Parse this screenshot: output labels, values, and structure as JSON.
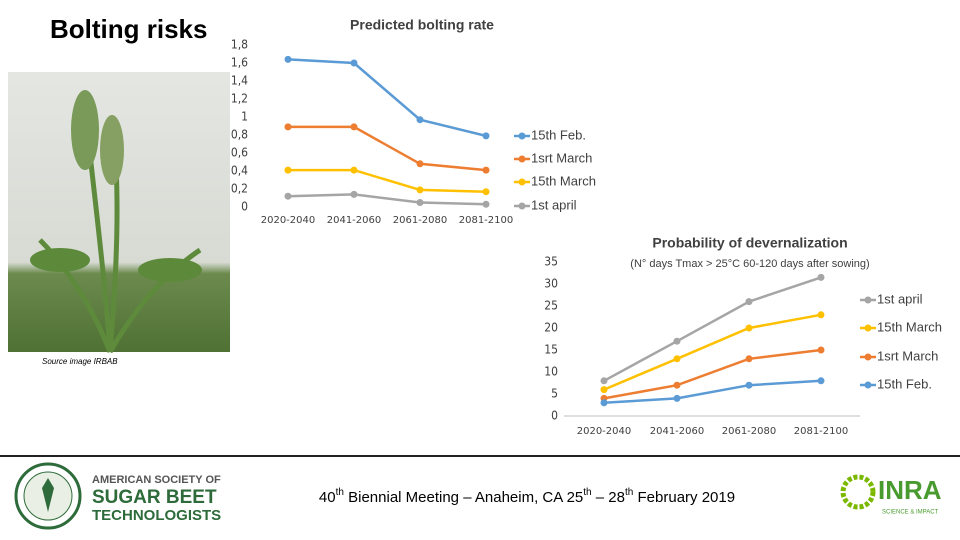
{
  "header": {
    "title": "Bolting risks",
    "image_source": "Source image IRBAB"
  },
  "chart_data": [
    {
      "type": "line",
      "title": "Predicted bolting rate",
      "categories": [
        "2020-2040",
        "2041-2060",
        "2061-2080",
        "2081-2100"
      ],
      "series": [
        {
          "name": "15th Feb.",
          "color": "#5b9bd5",
          "values": [
            1.64,
            1.6,
            0.97,
            0.79
          ]
        },
        {
          "name": "1srt March",
          "color": "#ed7d31",
          "values": [
            0.89,
            0.89,
            0.48,
            0.41
          ]
        },
        {
          "name": "15th March",
          "color": "#ffc000",
          "values": [
            0.41,
            0.41,
            0.19,
            0.17
          ]
        },
        {
          "name": "1st april",
          "color": "#a5a5a5",
          "values": [
            0.12,
            0.14,
            0.05,
            0.03
          ]
        }
      ],
      "ylim": [
        0,
        1.8
      ],
      "yticks": [
        0,
        {
          "value": 0.2,
          "label": "0,2"
        },
        {
          "value": 0.4,
          "label": "0,4"
        },
        {
          "value": 0.6,
          "label": "0,6"
        },
        {
          "value": 0.8,
          "label": "0,8"
        },
        1,
        {
          "value": 1.2,
          "label": "1,2"
        },
        {
          "value": 1.4,
          "label": "1,4"
        },
        {
          "value": 1.6,
          "label": "1,6"
        },
        {
          "value": 1.8,
          "label": "1,8"
        }
      ],
      "grid": false,
      "legend": "right"
    },
    {
      "type": "line",
      "title": "Probability of devernalization",
      "subtitle": "(N° days Tmax > 25°C 60-120 days after sowing)",
      "categories": [
        "2020-2040",
        "2041-2060",
        "2061-2080",
        "2081-2100"
      ],
      "series": [
        {
          "name": "1st april",
          "color": "#a5a5a5",
          "values": [
            8,
            17,
            26,
            31.5
          ]
        },
        {
          "name": "15th March",
          "color": "#ffc000",
          "values": [
            6,
            13,
            20,
            23
          ]
        },
        {
          "name": "1srt March",
          "color": "#ed7d31",
          "values": [
            4,
            7,
            13,
            15
          ]
        },
        {
          "name": "15th Feb.",
          "color": "#5b9bd5",
          "values": [
            3,
            4,
            7,
            8
          ]
        }
      ],
      "ylim": [
        0,
        35
      ],
      "yticks": [
        0,
        5,
        10,
        15,
        20,
        25,
        30,
        35
      ],
      "grid": false,
      "legend": "right"
    }
  ],
  "footer": {
    "parts": [
      "40",
      "th",
      " Biennial Meeting – Anaheim, CA 25",
      "th",
      " – 28",
      "th",
      " February 2019"
    ]
  },
  "logos": {
    "assbt": [
      "AMERICAN SOCIETY OF",
      "SUGAR BEET",
      "TECHNOLOGISTS"
    ],
    "inra": [
      "INRA",
      "SCIENCE & IMPACT"
    ]
  }
}
